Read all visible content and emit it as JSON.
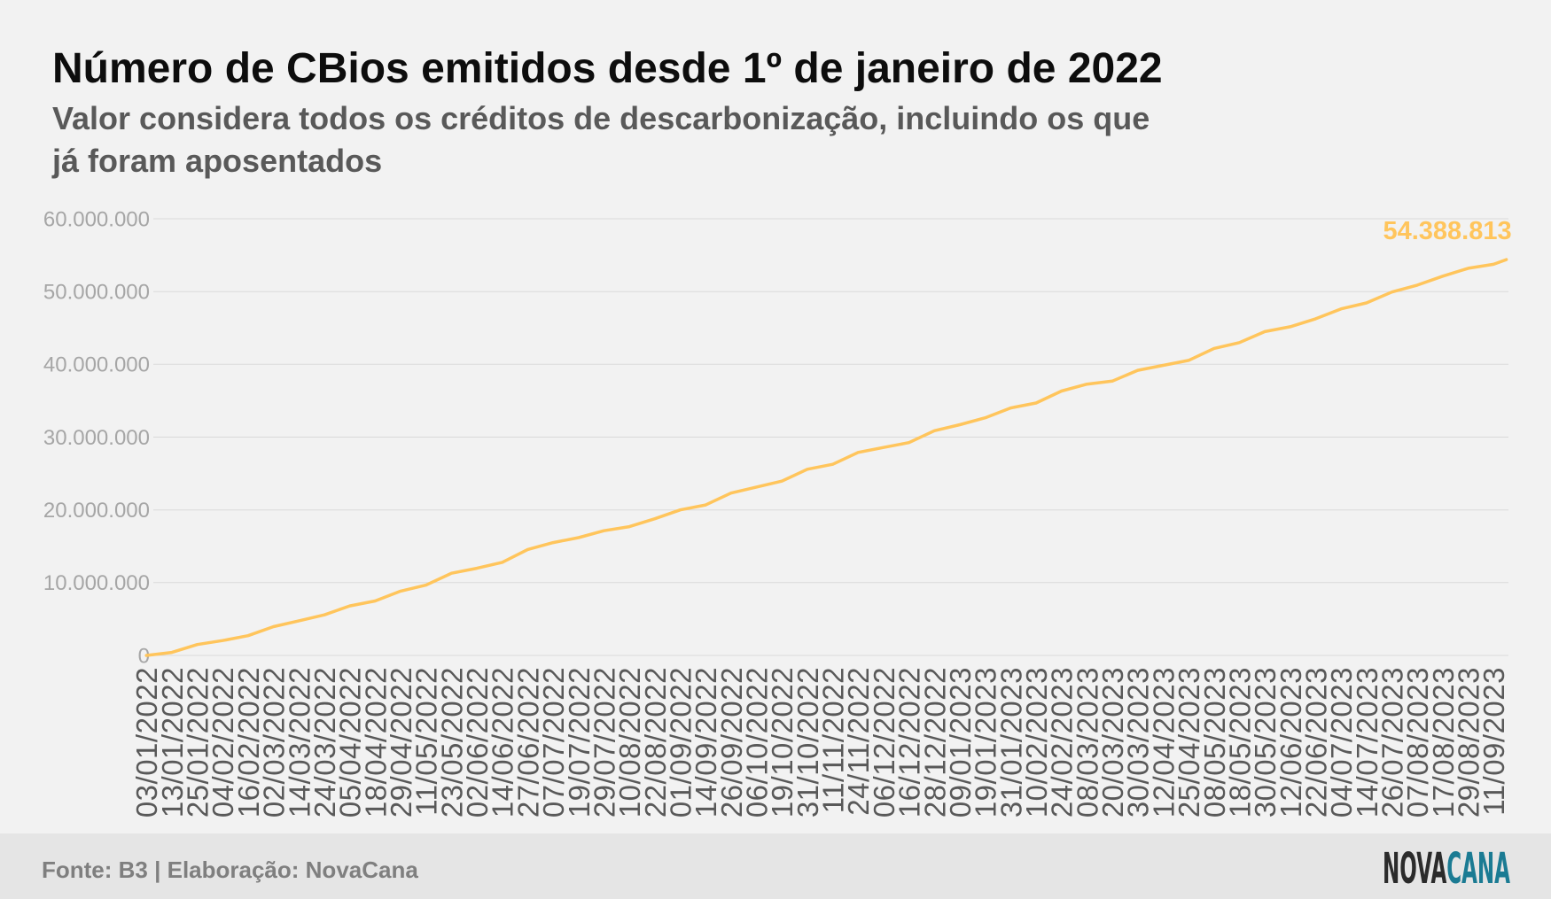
{
  "chart_data": {
    "type": "line",
    "title": "Número de CBios emitidos desde 1º de janeiro de 2022",
    "subtitle": "Valor considera todos os créditos de descarbonização, incluindo os que já foram aposentados",
    "categories": [
      "03/01/2022",
      "13/01/2022",
      "25/01/2022",
      "04/02/2022",
      "16/02/2022",
      "02/03/2022",
      "14/03/2022",
      "24/03/2022",
      "05/04/2022",
      "18/04/2022",
      "29/04/2022",
      "11/05/2022",
      "23/05/2022",
      "02/06/2022",
      "14/06/2022",
      "27/06/2022",
      "07/07/2022",
      "19/07/2022",
      "29/07/2022",
      "10/08/2022",
      "22/08/2022",
      "01/09/2022",
      "14/09/2022",
      "26/09/2022",
      "06/10/2022",
      "19/10/2022",
      "31/10/2022",
      "11/11/2022",
      "24/11/2022",
      "06/12/2022",
      "16/12/2022",
      "28/12/2022",
      "09/01/2023",
      "19/01/2023",
      "31/01/2023",
      "10/02/2023",
      "24/02/2023",
      "08/03/2023",
      "20/03/2023",
      "30/03/2023",
      "12/04/2023",
      "25/04/2023",
      "08/05/2023",
      "18/05/2023",
      "30/05/2023",
      "12/06/2023",
      "22/06/2023",
      "04/07/2023",
      "14/07/2023",
      "26/07/2023",
      "07/08/2023",
      "17/08/2023",
      "29/08/2023",
      "11/09/2023"
    ],
    "values": [
      0,
      410000,
      1500000,
      2040000,
      2720000,
      3950000,
      4760000,
      5580000,
      6800000,
      7480000,
      8840000,
      9660000,
      11290000,
      11970000,
      12790000,
      14560000,
      15510000,
      16190000,
      17140000,
      17690000,
      18780000,
      20000000,
      20680000,
      22310000,
      23130000,
      23950000,
      25580000,
      26260000,
      27890000,
      28570000,
      29250000,
      30880000,
      31700000,
      32650000,
      34010000,
      34690000,
      36330000,
      37280000,
      37690000,
      39180000,
      39860000,
      40540000,
      42180000,
      42990000,
      44490000,
      45170000,
      46260000,
      47620000,
      48440000,
      49930000,
      50880000,
      52110000,
      53200000,
      53740000
    ],
    "last_value": 54388813,
    "last_value_label": "54.388.813",
    "yticks": [
      0,
      10000000,
      20000000,
      30000000,
      40000000,
      50000000,
      60000000
    ],
    "ytick_labels": [
      "0",
      "10.000.000",
      "20.000.000",
      "30.000.000",
      "40.000.000",
      "50.000.000",
      "60.000.000"
    ],
    "ylim": [
      0,
      60000000
    ],
    "grid": true,
    "series_color": "#ffc55c"
  },
  "footer": {
    "source": "Fonte: B3 | Elaboração: NovaCana"
  },
  "logo": {
    "part1": "NOVA",
    "part2": "CANA",
    "part1_color": "#2b2b2b",
    "part2_color": "#1b7b93"
  }
}
